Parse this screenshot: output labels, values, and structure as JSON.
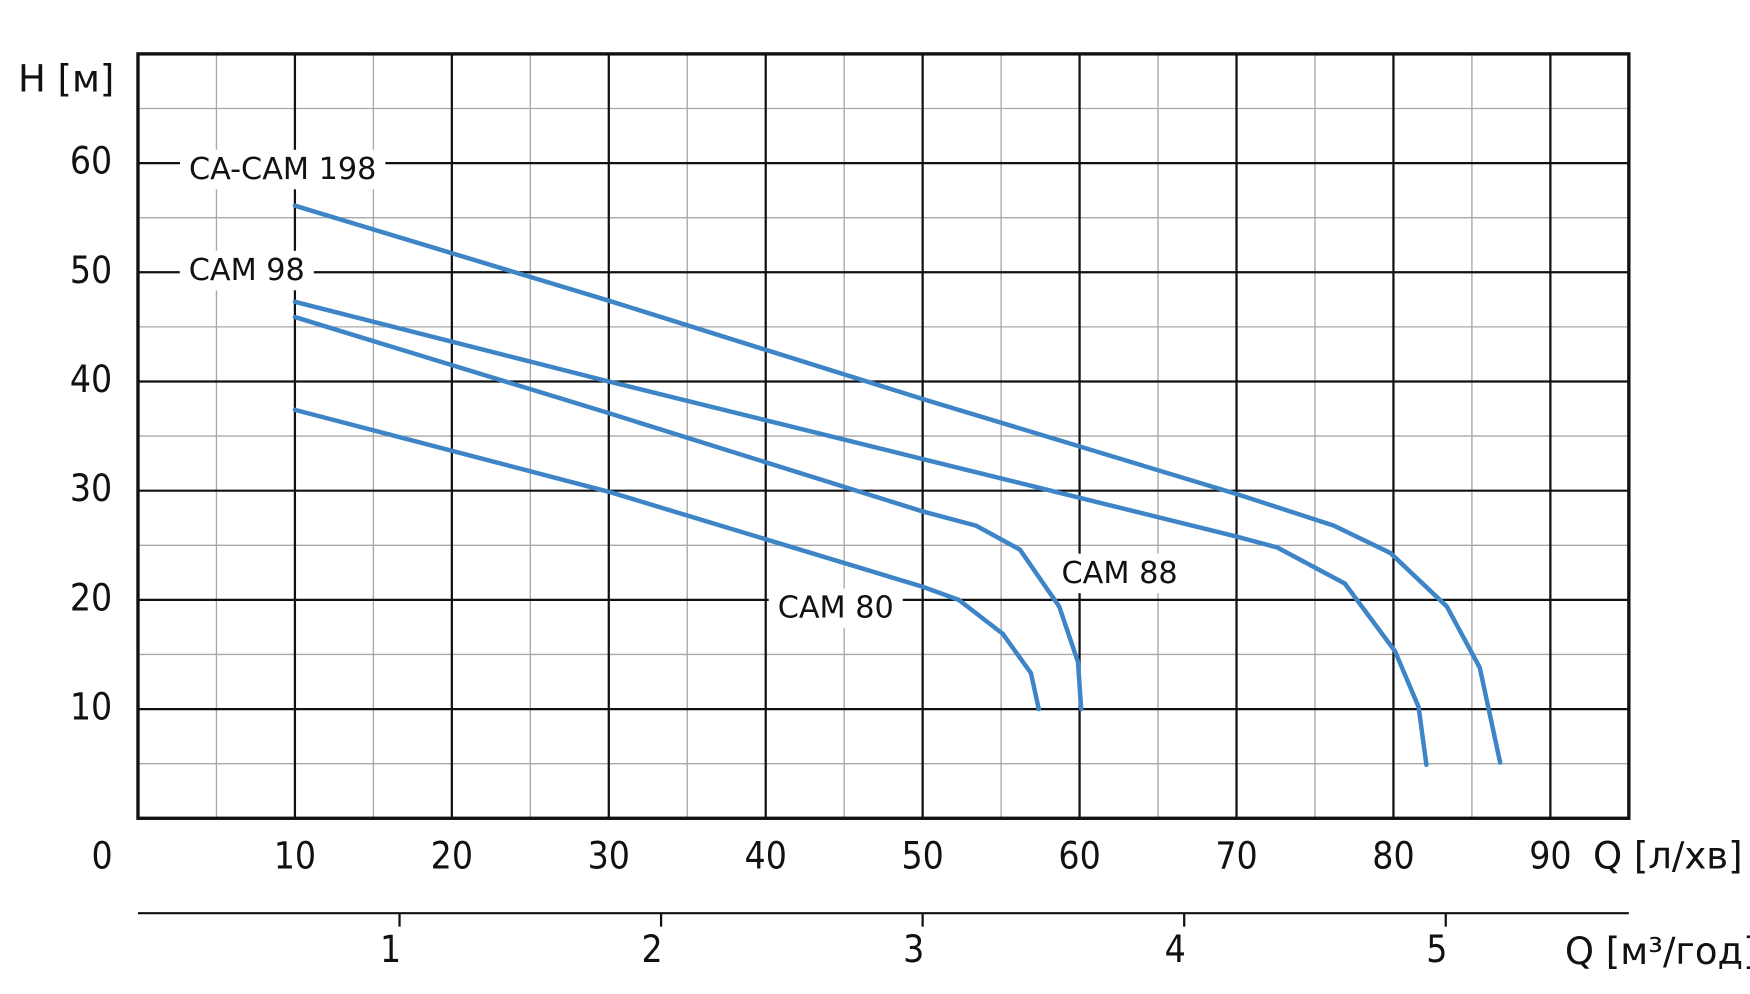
{
  "chart_data": {
    "type": "line",
    "y_label": "H [м]",
    "x_label": "Q [л/хв]",
    "x2_label": "Q [м³/год]",
    "xlim": [
      0,
      95
    ],
    "ylim": [
      0,
      70
    ],
    "xticks": [
      0,
      10,
      20,
      30,
      40,
      50,
      60,
      70,
      80,
      90
    ],
    "yticks": [
      10,
      20,
      30,
      40,
      50,
      60
    ],
    "xminor": [
      5,
      15,
      25,
      35,
      45,
      55,
      65,
      75,
      85
    ],
    "yminor": [
      5,
      15,
      25,
      35,
      45,
      55,
      65
    ],
    "x2lim": [
      0,
      5.7
    ],
    "x2ticks": [
      1,
      2,
      3,
      4,
      5
    ],
    "grid": true,
    "series": [
      {
        "name": "CA-CAM 198",
        "color": "#3d85c6",
        "x": [
          10,
          30,
          50,
          70,
          76.2,
          79.8,
          83.4,
          85.5,
          86.8
        ],
        "values": [
          56.1,
          47.4,
          38.4,
          29.7,
          26.8,
          24.3,
          19.4,
          13.8,
          5.1
        ]
      },
      {
        "name": "CAM 98",
        "color": "#3d85c6",
        "x": [
          10,
          30,
          50,
          70,
          72.6,
          76.9,
          80.1,
          81.6,
          82.1
        ],
        "values": [
          47.3,
          40,
          32.9,
          25.8,
          24.8,
          21.5,
          15.3,
          10.2,
          4.9
        ]
      },
      {
        "name": "CAM 88",
        "color": "#3d85c6",
        "x": [
          10,
          30,
          50,
          53.4,
          56.2,
          58.7,
          59.9,
          60.1
        ],
        "values": [
          45.9,
          37.1,
          28.1,
          26.8,
          24.6,
          19.4,
          14.3,
          10
        ]
      },
      {
        "name": "CAM 80",
        "color": "#3d85c6",
        "x": [
          10,
          30,
          50,
          52.3,
          55.1,
          56.9,
          57.4
        ],
        "values": [
          37.4,
          29.9,
          21.2,
          20,
          16.9,
          13.3,
          10
        ]
      }
    ]
  }
}
